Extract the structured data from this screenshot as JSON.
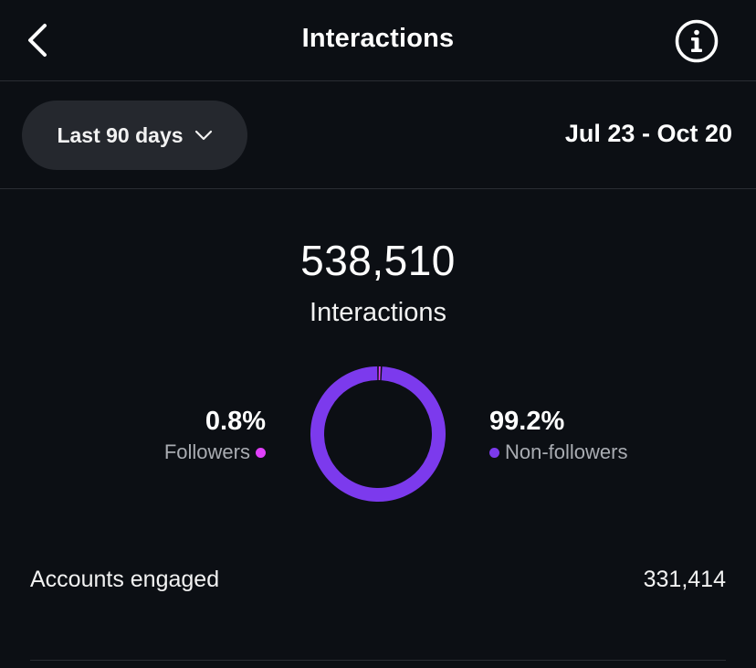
{
  "header": {
    "title": "Interactions",
    "back_icon": "chevron-left-icon",
    "info_icon": "info-circle-icon"
  },
  "filter": {
    "range_label": "Last 90 days",
    "dropdown_icon": "chevron-down-icon",
    "date_range": "Jul 23 - Oct 20"
  },
  "summary": {
    "total_value": "538,510",
    "total_label": "Interactions"
  },
  "breakdown": {
    "followers": {
      "percent": "0.8%",
      "label": "Followers",
      "color": "#e040fb"
    },
    "non_followers": {
      "percent": "99.2%",
      "label": "Non-followers",
      "color": "#7c3aed"
    }
  },
  "chart_data": {
    "type": "pie",
    "style": "donut",
    "categories": [
      "Followers",
      "Non-followers"
    ],
    "values": [
      0.8,
      99.2
    ],
    "colors": [
      "#e040fb",
      "#7c3aed"
    ],
    "title": "Interactions"
  },
  "metrics": {
    "accounts_engaged_label": "Accounts engaged",
    "accounts_engaged_value": "331,414"
  }
}
